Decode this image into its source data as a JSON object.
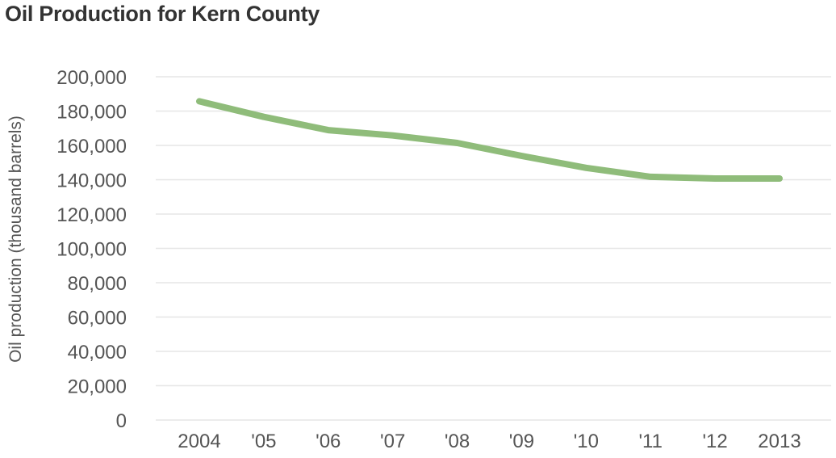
{
  "colors": {
    "line": "#8fbc7a",
    "grid": "#e6e6e6",
    "text": "#555555",
    "title": "#333333"
  },
  "chart_data": {
    "type": "line",
    "title": "Oil Production for Kern County",
    "xlabel": "",
    "ylabel": "Oil production (thousand barrels)",
    "categories": [
      "2004",
      "'05",
      "'06",
      "'07",
      "'08",
      "'09",
      "'10",
      "'11",
      "'12",
      "2013"
    ],
    "series": [
      {
        "values": [
          185700,
          176600,
          168900,
          165800,
          161400,
          153900,
          146900,
          141700,
          140700,
          140700
        ]
      }
    ],
    "ylim": [
      0,
      200000
    ],
    "yticks": [
      0,
      20000,
      40000,
      60000,
      80000,
      100000,
      120000,
      140000,
      160000,
      180000,
      200000
    ],
    "ytick_labels": [
      "0",
      "20,000",
      "40,000",
      "60,000",
      "80,000",
      "100,000",
      "120,000",
      "140,000",
      "160,000",
      "180,000",
      "200,000"
    ],
    "grid": true,
    "legend": "none"
  }
}
